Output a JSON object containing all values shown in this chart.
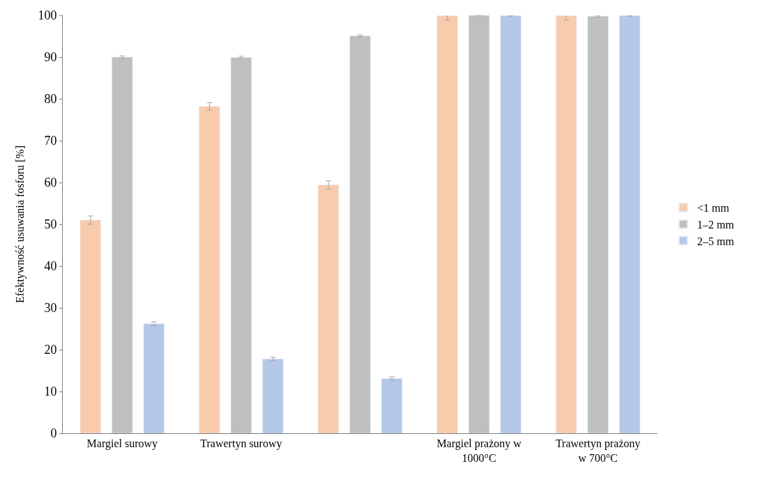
{
  "chart_data": {
    "type": "bar",
    "ylabel": "Efektywność usuwania fosforu [%]",
    "categories": [
      "Margiel surowy",
      "Trawertyn surowy",
      null,
      "Margiel prażony w\n1000°C",
      "Trawertyn prażony\nw 700°C"
    ],
    "series": [
      {
        "name": "<1 mm",
        "color": "#f8cbad",
        "values": [
          51.0,
          78.2,
          59.4,
          99.9,
          99.9
        ],
        "errors": [
          1.0,
          0.9,
          1.0,
          1.0,
          1.0
        ]
      },
      {
        "name": "1–2 mm",
        "color": "#bfbfbf",
        "values": [
          90.0,
          89.9,
          95.1,
          100.0,
          99.8
        ],
        "errors": [
          0.3,
          0.3,
          0.2,
          0.1,
          0.2
        ]
      },
      {
        "name": "2–5 mm",
        "color": "#b4c7e7",
        "values": [
          26.2,
          17.8,
          13.1,
          99.9,
          99.9
        ],
        "errors": [
          0.5,
          0.4,
          0.4,
          0.1,
          0.1
        ]
      }
    ],
    "ylim": [
      0,
      100
    ],
    "yticks": [
      0,
      10,
      20,
      30,
      40,
      50,
      60,
      70,
      80,
      90,
      100
    ],
    "legend": "right"
  }
}
